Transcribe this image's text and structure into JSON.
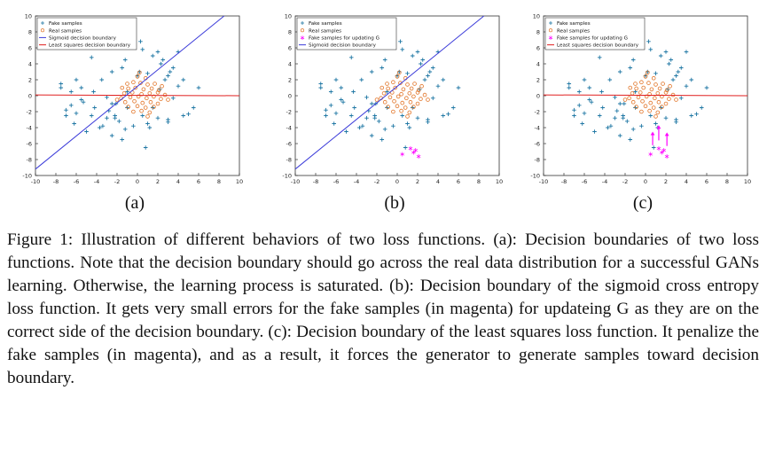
{
  "chart_data": [
    {
      "type": "scatter",
      "panel_label": "(a)",
      "xlim": [
        -10,
        10
      ],
      "ylim": [
        -10,
        10
      ],
      "xticks": [
        "-10",
        "-8",
        "-6",
        "-4",
        "-2",
        "0",
        "2",
        "4",
        "6",
        "8",
        "10"
      ],
      "yticks": [
        "10",
        "8",
        "6",
        "4",
        "2",
        "0",
        "-2",
        "-4",
        "-6",
        "-8",
        "-10"
      ],
      "legend": [
        "Fake samples",
        "Real samples",
        "Sigmoid decision boundary",
        "Least squares decision boundary"
      ],
      "legend_position": "top-left",
      "sigmoid_boundary": {
        "x": [
          -10,
          8.5
        ],
        "y": [
          -9.2,
          10
        ]
      },
      "least_squares_boundary": {
        "x": [
          -10,
          10
        ],
        "y": [
          0.1,
          0
        ]
      },
      "magenta_samples": [],
      "arrows": []
    },
    {
      "type": "scatter",
      "panel_label": "(b)",
      "xlim": [
        -10,
        10
      ],
      "ylim": [
        -10,
        10
      ],
      "xticks": [
        "-10",
        "-8",
        "-6",
        "-4",
        "-2",
        "0",
        "2",
        "4",
        "6",
        "8",
        "10"
      ],
      "yticks": [
        "10",
        "8",
        "6",
        "4",
        "2",
        "0",
        "-2",
        "-4",
        "-6",
        "-8",
        "-10"
      ],
      "legend": [
        "Fake samples",
        "Real samples",
        "Fake samples for updating G",
        "Sigmoid decision boundary"
      ],
      "legend_position": "top-left",
      "sigmoid_boundary": {
        "x": [
          -10,
          8.5
        ],
        "y": [
          -9.2,
          10
        ]
      },
      "least_squares_boundary": null,
      "magenta_samples": {
        "x": [
          0.5,
          1.3,
          1.6,
          1.8,
          2.1
        ],
        "y": [
          -7.3,
          -6.6,
          -7.1,
          -6.8,
          -7.6
        ]
      },
      "arrows": []
    },
    {
      "type": "scatter",
      "panel_label": "(c)",
      "xlim": [
        -10,
        10
      ],
      "ylim": [
        -10,
        10
      ],
      "xticks": [
        "-10",
        "-8",
        "-6",
        "-4",
        "-2",
        "0",
        "2",
        "4",
        "6",
        "8",
        "10"
      ],
      "yticks": [
        "10",
        "8",
        "6",
        "4",
        "2",
        "0",
        "-2",
        "-4",
        "-6",
        "-8",
        "-10"
      ],
      "legend": [
        "Fake samples",
        "Real samples",
        "Fake samples for updating G",
        "Least squares decision boundary"
      ],
      "legend_position": "top-left",
      "sigmoid_boundary": null,
      "least_squares_boundary": {
        "x": [
          -10,
          10
        ],
        "y": [
          0.1,
          0
        ]
      },
      "magenta_samples": {
        "x": [
          0.5,
          1.3,
          1.6,
          1.8,
          2.1
        ],
        "y": [
          -7.3,
          -6.6,
          -7.1,
          -6.8,
          -7.6
        ]
      },
      "arrows": [
        {
          "x": 0.7,
          "y_from": -6.2,
          "y_to": -4.5
        },
        {
          "x": 1.3,
          "y_from": -5.6,
          "y_to": -3.7
        },
        {
          "x": 2.1,
          "y_from": -6.3,
          "y_to": -4.6
        }
      ]
    }
  ],
  "shared_samples": {
    "fake": {
      "x": [
        -2.0,
        0.3,
        0.5,
        2.0,
        1.5,
        4.0,
        2.5,
        -4.5,
        3.5,
        0.2,
        -1.5,
        -2.5,
        4.5,
        -6.0,
        -7.5,
        -5.5,
        6.0,
        0.0,
        1.0,
        3.0,
        -3.5,
        -1.2,
        2.3,
        3.2,
        -6.5,
        -4.3,
        -5.3,
        -3.0,
        -2.5,
        -1.0,
        1.5,
        5.5,
        -7.0,
        -6.0,
        -4.5,
        -2.2,
        0.5,
        2.0,
        3.0,
        4.5,
        -7.0,
        -6.2,
        -3.4,
        -3.0,
        -2.2,
        1.0,
        1.2,
        3.0,
        5.0,
        -7.5,
        -6.5,
        -5.0,
        -3.7,
        -4.2,
        -5.5,
        -2.8,
        -2.5,
        -1.5,
        0.8,
        -1.8,
        -1.2,
        -0.4,
        -2.1,
        -1.0,
        2.2,
        3.5,
        2.7,
        4.0
      ],
      "y": [
        6.2,
        6.8,
        5.8,
        5.5,
        5.0,
        5.5,
        4.5,
        4.8,
        3.5,
        3.0,
        3.5,
        3.0,
        2.0,
        2.0,
        1.5,
        1.0,
        1.0,
        2.5,
        2.8,
        2.5,
        2.0,
        4.5,
        4.0,
        3.0,
        0.5,
        0.5,
        -0.8,
        -0.2,
        -1.0,
        -1.5,
        -1.5,
        -1.5,
        -1.8,
        -2.2,
        -2.5,
        -2.8,
        -2.5,
        -2.8,
        -3.3,
        -2.5,
        -2.5,
        -3.5,
        -3.8,
        -2.8,
        -2.5,
        -3.5,
        -4.0,
        -3.0,
        -2.3,
        1.0,
        -1.2,
        -4.5,
        -4.0,
        -1.5,
        -0.5,
        -1.9,
        -5.0,
        -5.5,
        -6.5,
        -3.2,
        -4.2,
        -3.8,
        -1.0,
        0.5,
        0.8,
        -0.3,
        2.0,
        1.2
      ]
    },
    "real": {
      "x": [
        -1.0,
        -0.4,
        0.3,
        1.0,
        1.7,
        2.4,
        -0.9,
        -0.2,
        0.6,
        1.4,
        2.1,
        -1.3,
        -0.5,
        0.4,
        1.2,
        2.0,
        2.7,
        -1.6,
        -0.7,
        0.1,
        0.9,
        1.6,
        2.3,
        -1.2,
        -0.3,
        0.5,
        1.3,
        2.0,
        -0.9,
        0.0,
        0.8,
        1.6,
        -0.4,
        0.4,
        1.2,
        0.0,
        0.8,
        -1.5,
        3.0,
        -2.0,
        0.2,
        1.0
      ],
      "y": [
        1.5,
        1.7,
        1.6,
        1.4,
        1.5,
        1.2,
        0.9,
        1.0,
        0.8,
        0.9,
        0.7,
        0.3,
        0.4,
        0.2,
        0.3,
        0.4,
        0.1,
        -0.3,
        -0.2,
        -0.1,
        -0.3,
        -0.1,
        -0.4,
        -0.8,
        -0.7,
        -0.9,
        -0.8,
        -1.0,
        -1.4,
        -1.3,
        -1.5,
        -1.4,
        -2.0,
        -1.9,
        -2.1,
        2.4,
        2.2,
        1.0,
        -0.5,
        -0.5,
        2.9,
        -2.6
      ]
    }
  },
  "caption": "Figure 1: Illustration of different behaviors of two loss functions. (a): Decision boundaries of two loss functions. Note that the decision boundary should go across the real data distribution for a successful GANs learning. Otherwise, the learning process is saturated. (b): Decision boundary of the sigmoid cross entropy loss function. It gets very small errors for the fake samples (in magenta) for updateing G as they are on the correct side of the decision boundary. (c): Decision boundary of the least squares loss function. It penalize the fake samples (in magenta), and as a result, it forces the generator to generate samples toward decision boundary.",
  "colors": {
    "fake": "#1f77a4",
    "real": "#e2762a",
    "sigmoid": "#3b3bd9",
    "least_squares": "#e01f1f",
    "magenta": "#ff00ff",
    "axis": "#333333"
  }
}
